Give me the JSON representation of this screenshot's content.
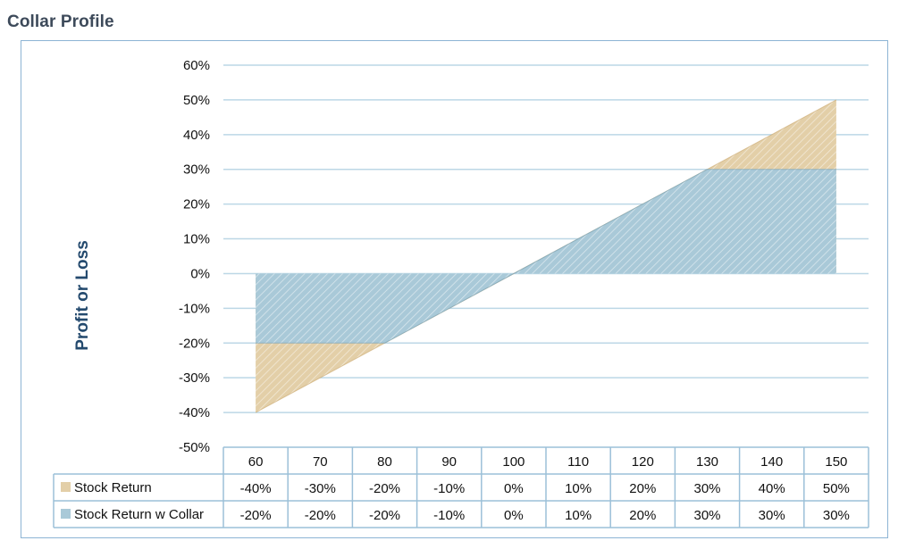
{
  "page": {
    "title": "Collar Profile"
  },
  "colors": {
    "stock_return": "#e3cfa8",
    "stock_return_stroke": "#c9a76a",
    "collar": "#a9c9d8",
    "collar_stroke": "#6e9fb8",
    "grid": "#bcd7e6",
    "table_border": "#9cc0d8",
    "ylabel": "#244a6e"
  },
  "chart_data": {
    "type": "area",
    "title": "",
    "xlabel": "",
    "ylabel": "Profit or Loss",
    "ylim": [
      -50,
      60
    ],
    "y_ticks": [
      60,
      50,
      40,
      30,
      20,
      10,
      0,
      -10,
      -20,
      -30,
      -40,
      -50
    ],
    "y_tick_labels": [
      "60%",
      "50%",
      "40%",
      "30%",
      "20%",
      "10%",
      "0%",
      "-10%",
      "-20%",
      "-30%",
      "-40%",
      "-50%"
    ],
    "categories": [
      "60",
      "70",
      "80",
      "90",
      "100",
      "110",
      "120",
      "130",
      "140",
      "150"
    ],
    "grid": true,
    "legend": "data-table-bottom",
    "series": [
      {
        "name": "Stock Return",
        "values": [
          -40,
          -30,
          -20,
          -10,
          0,
          10,
          20,
          30,
          40,
          50
        ],
        "labels": [
          "-40%",
          "-30%",
          "-20%",
          "-10%",
          "0%",
          "10%",
          "20%",
          "30%",
          "40%",
          "50%"
        ]
      },
      {
        "name": "Stock Return w Collar",
        "values": [
          -20,
          -20,
          -20,
          -10,
          0,
          10,
          20,
          30,
          30,
          30
        ],
        "labels": [
          "-20%",
          "-20%",
          "-20%",
          "-10%",
          "0%",
          "10%",
          "20%",
          "30%",
          "30%",
          "30%"
        ]
      }
    ]
  }
}
